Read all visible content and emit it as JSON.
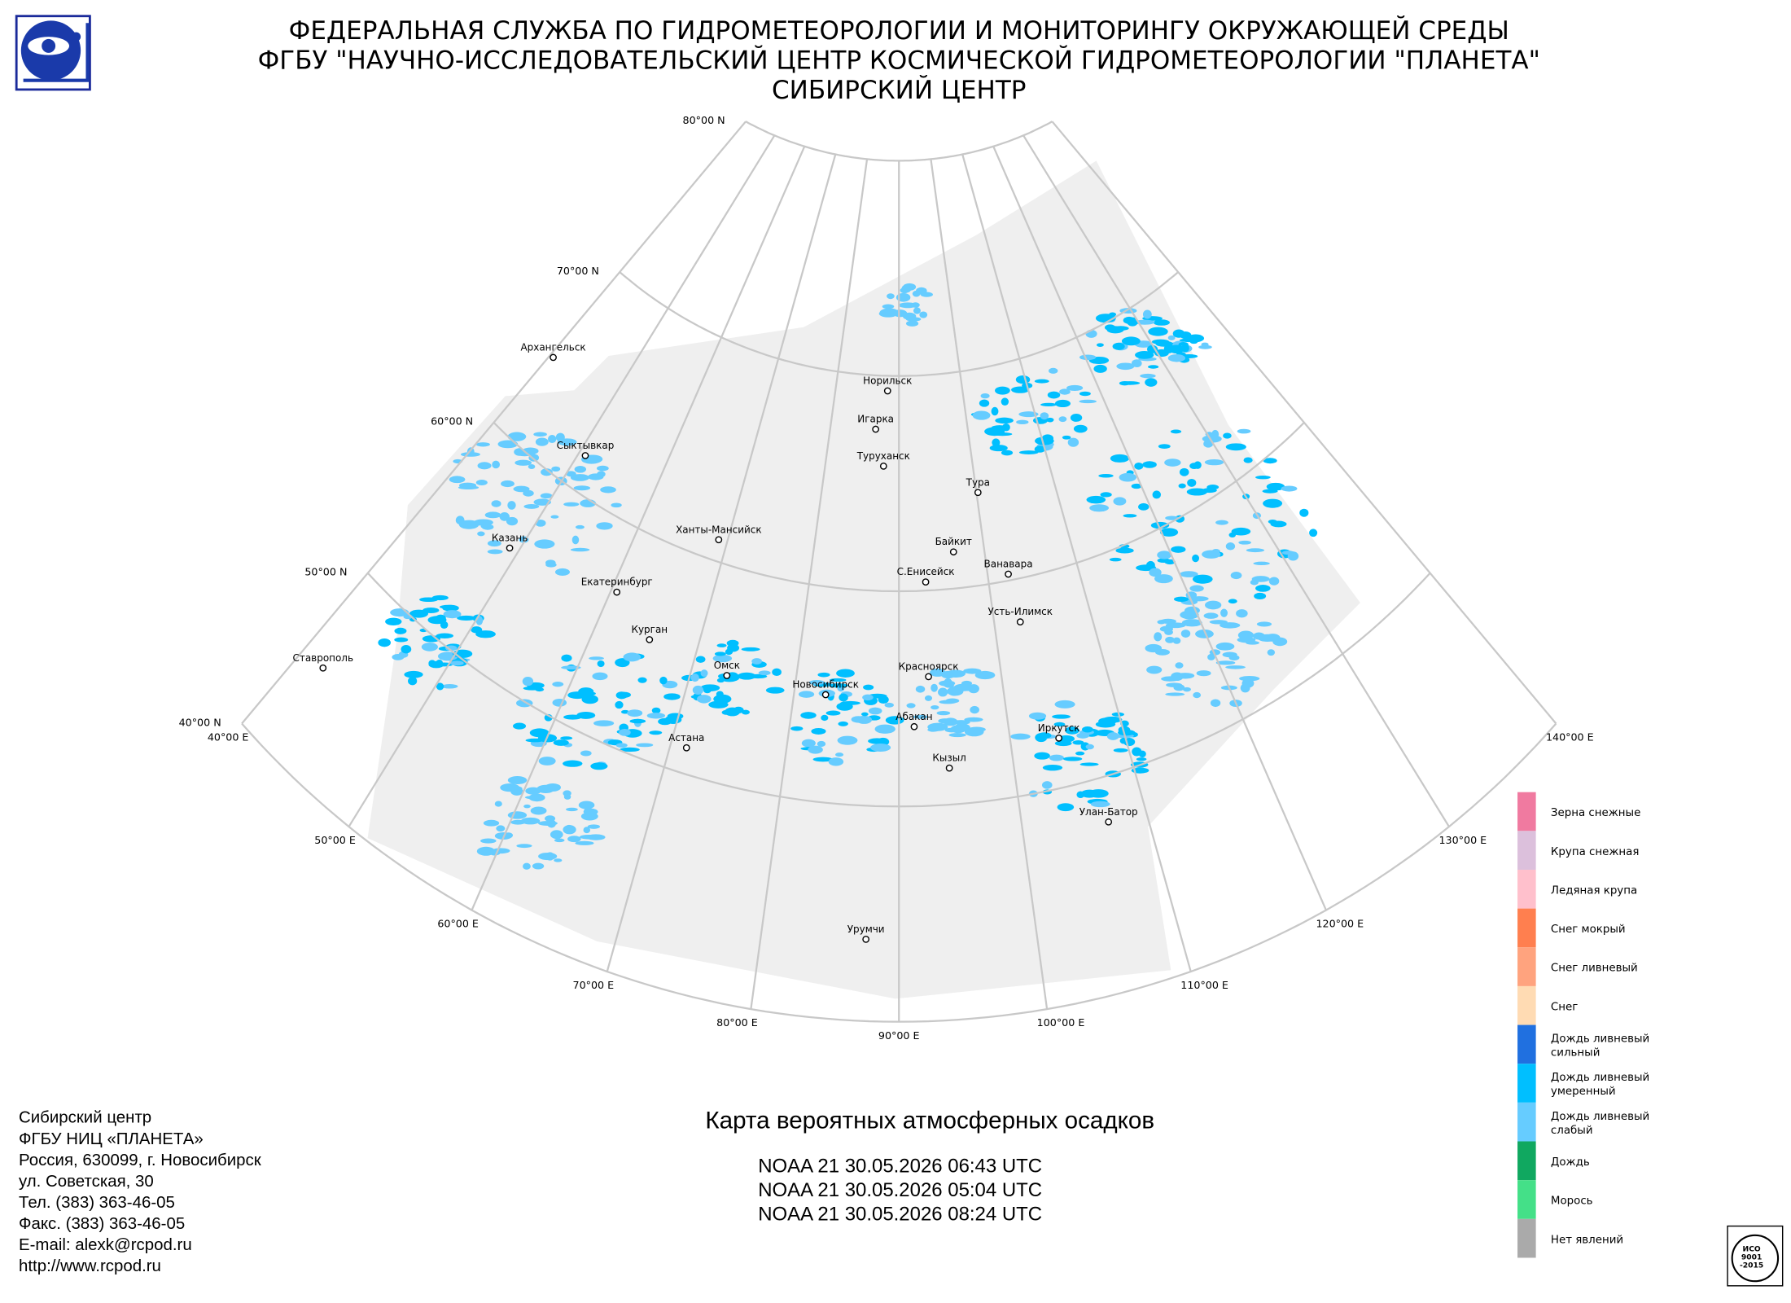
{
  "header": {
    "lines": [
      "ФЕДЕРАЛЬНАЯ СЛУЖБА ПО ГИДРОМЕТЕОРОЛОГИИ И МОНИТОРИНГУ ОКРУЖАЮЩЕЙ СРЕДЫ",
      "ФГБУ \"НАУЧНО-ИССЛЕДОВАТЕЛЬСКИЙ ЦЕНТР КОСМИЧЕСКОЙ ГИДРОМЕТЕОРОЛОГИИ \"ПЛАНЕТА\"",
      "СИБИРСКИЙ ЦЕНТР"
    ]
  },
  "map": {
    "lat_labels": [
      "80°00 N",
      "70°00 N",
      "60°00 N",
      "50°00 N",
      "40°00 N"
    ],
    "lon_labels": [
      "40°00 E",
      "50°00 E",
      "60°00 E",
      "70°00 E",
      "80°00 E",
      "90°00 E",
      "100°00 E",
      "110°00 E",
      "120°00 E",
      "130°00 E",
      "140°00 E"
    ],
    "cities": [
      "Архангельск",
      "Сыктывкар",
      "Казань",
      "Екатеринбург",
      "Ханты-Мансийск",
      "Курган",
      "Омск",
      "Новосибирск",
      "Астана",
      "Красноярск",
      "Абакан",
      "Кызыл",
      "Иркутск",
      "Улан-Батор",
      "Норильск",
      "Игарка",
      "Туруханск",
      "Тура",
      "Байкит",
      "С.Енисейск",
      "Ванавара",
      "Усть-Илимск",
      "Ставрополь",
      "Урумчи"
    ]
  },
  "legend": {
    "items": [
      {
        "label": [
          "Зерна снежные"
        ],
        "color": "#f07aa0"
      },
      {
        "label": [
          "Крупа снежная"
        ],
        "color": "#dcc0dc"
      },
      {
        "label": [
          "Ледяная крупа"
        ],
        "color": "#ffc0cc"
      },
      {
        "label": [
          "Снег мокрый"
        ],
        "color": "#ff7f4f"
      },
      {
        "label": [
          "Снег ливневый"
        ],
        "color": "#ffa37e"
      },
      {
        "label": [
          "Снег"
        ],
        "color": "#ffdbb3"
      },
      {
        "label": [
          "Дождь ливневый",
          "сильный"
        ],
        "color": "#2070e0"
      },
      {
        "label": [
          "Дождь ливневый",
          "умеренный"
        ],
        "color": "#00bfff"
      },
      {
        "label": [
          "Дождь ливневый",
          "слабый"
        ],
        "color": "#66ccff"
      },
      {
        "label": [
          "Дождь"
        ],
        "color": "#10a860"
      },
      {
        "label": [
          "Морось"
        ],
        "color": "#44e088"
      },
      {
        "label": [
          "Нет явлений"
        ],
        "color": "#aaaaaa"
      }
    ]
  },
  "footer": {
    "lines": [
      "Сибирский центр",
      "ФГБУ НИЦ «ПЛАНЕТА»",
      "Россия, 630099, г. Новосибирск",
      "ул. Советская, 30",
      "Тел. (383) 363-46-05",
      "Факс. (383) 363-46-05",
      "E-mail: alexk@rcpod.ru",
      "http://www.rcpod.ru"
    ]
  },
  "title": "Карта вероятных атмосферных осадков",
  "passes": [
    "NOAA 21 30.05.2026  06:43 UTC",
    "NOAA 21 30.05.2026  05:04 UTC",
    "NOAA 21 30.05.2026  08:24 UTC"
  ],
  "iso": {
    "lines": [
      "ИСО",
      "9001",
      "-2015"
    ]
  }
}
